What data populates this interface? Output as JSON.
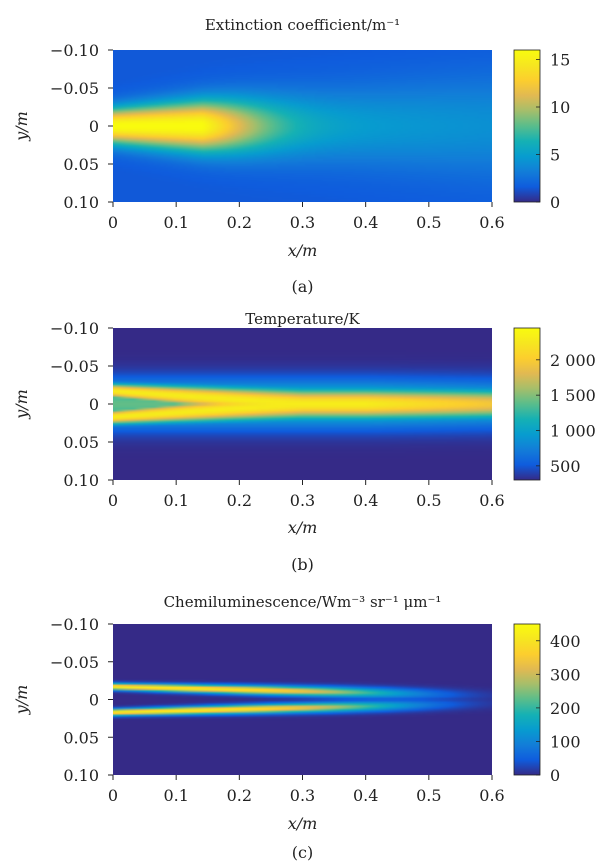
{
  "chart_data": [
    {
      "type": "heatmap",
      "title": "Extinction coefficient/m⁻¹",
      "xlabel": "x/m",
      "ylabel": "y/m",
      "xlim": [
        0,
        0.6
      ],
      "ylim": [
        -0.1,
        0.1
      ],
      "y_reversed": true,
      "x_ticks": [
        0,
        0.1,
        0.2,
        0.3,
        0.4,
        0.5,
        0.6
      ],
      "x_tick_labels": [
        "0",
        "0.1",
        "0.2",
        "0.3",
        "0.4",
        "0.5",
        "0.6"
      ],
      "y_ticks": [
        -0.1,
        -0.05,
        0,
        0.05,
        0.1
      ],
      "y_tick_labels": [
        "−0.10",
        "−0.05",
        "0",
        "0.05",
        "0.10"
      ],
      "colorbar": {
        "min": 0,
        "max": 16,
        "ticks": [
          0,
          5,
          10,
          15
        ],
        "tick_labels": [
          "0",
          "5",
          "10",
          "15"
        ]
      },
      "colormap": "parula",
      "field": {
        "shape": "single-core-jet",
        "peak_value": 15,
        "peak_x": 0.06,
        "background": 1.5
      },
      "panel_label": "(a)"
    },
    {
      "type": "heatmap",
      "title": "Temperature/K",
      "xlabel": "x/m",
      "ylabel": "y/m",
      "xlim": [
        0,
        0.6
      ],
      "ylim": [
        -0.1,
        0.1
      ],
      "y_reversed": true,
      "x_ticks": [
        0,
        0.1,
        0.2,
        0.3,
        0.4,
        0.5,
        0.6
      ],
      "x_tick_labels": [
        "0",
        "0.1",
        "0.2",
        "0.3",
        "0.4",
        "0.5",
        "0.6"
      ],
      "y_ticks": [
        -0.1,
        -0.05,
        0,
        0.05,
        0.1
      ],
      "y_tick_labels": [
        "−0.10",
        "−0.05",
        "0",
        "0.05",
        "0.10"
      ],
      "colorbar": {
        "min": 300,
        "max": 2450,
        "ticks": [
          500,
          1000,
          1500,
          2000
        ],
        "tick_labels": [
          "500",
          "1 000",
          "1 500",
          "2 000"
        ]
      },
      "colormap": "parula",
      "field": {
        "shape": "twin-flame-merging",
        "peak_value": 2350,
        "background": 300
      },
      "panel_label": "(b)"
    },
    {
      "type": "heatmap",
      "title": "Chemiluminescence/Wm⁻³ sr⁻¹ μm⁻¹",
      "xlabel": "x/m",
      "ylabel": "y/m",
      "xlim": [
        0,
        0.6
      ],
      "ylim": [
        -0.1,
        0.1
      ],
      "y_reversed": true,
      "x_ticks": [
        0,
        0.1,
        0.2,
        0.3,
        0.4,
        0.5,
        0.6
      ],
      "x_tick_labels": [
        "0",
        "0.1",
        "0.2",
        "0.3",
        "0.4",
        "0.5",
        "0.6"
      ],
      "y_ticks": [
        -0.1,
        -0.05,
        0,
        0.05,
        0.1
      ],
      "y_tick_labels": [
        "−0.10",
        "−0.05",
        "0",
        "0.05",
        "0.10"
      ],
      "colorbar": {
        "min": 0,
        "max": 450,
        "ticks": [
          0,
          100,
          200,
          300,
          400
        ],
        "tick_labels": [
          "0",
          "100",
          "200",
          "300",
          "400"
        ]
      },
      "colormap": "parula",
      "field": {
        "shape": "twin-thin-sheets",
        "peak_value": 440,
        "background": 0
      },
      "panel_label": "(c)"
    }
  ]
}
